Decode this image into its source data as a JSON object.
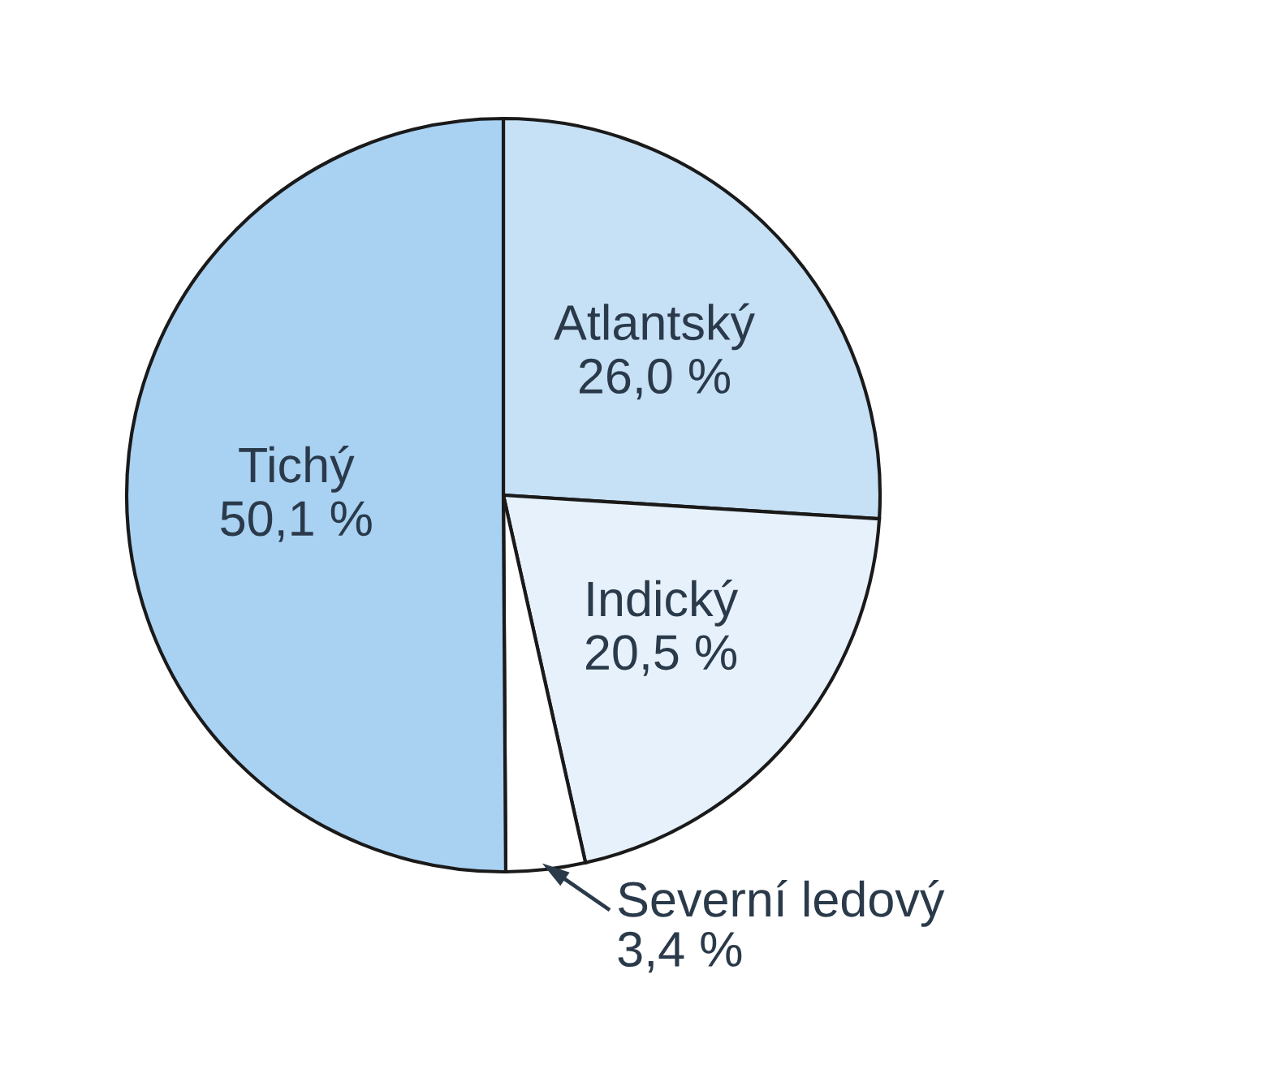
{
  "chart_data": {
    "type": "pie",
    "categories": [
      "Atlantský",
      "Indický",
      "Severní ledový",
      "Tichý"
    ],
    "values": [
      26.0,
      20.5,
      3.4,
      50.1
    ],
    "value_labels": [
      "26,0 %",
      "20,5 %",
      "3,4 %",
      "50,1 %"
    ],
    "colors": [
      "#c6e0f5",
      "#e6f1fb",
      "#ffffff",
      "#a9d1f2"
    ]
  }
}
